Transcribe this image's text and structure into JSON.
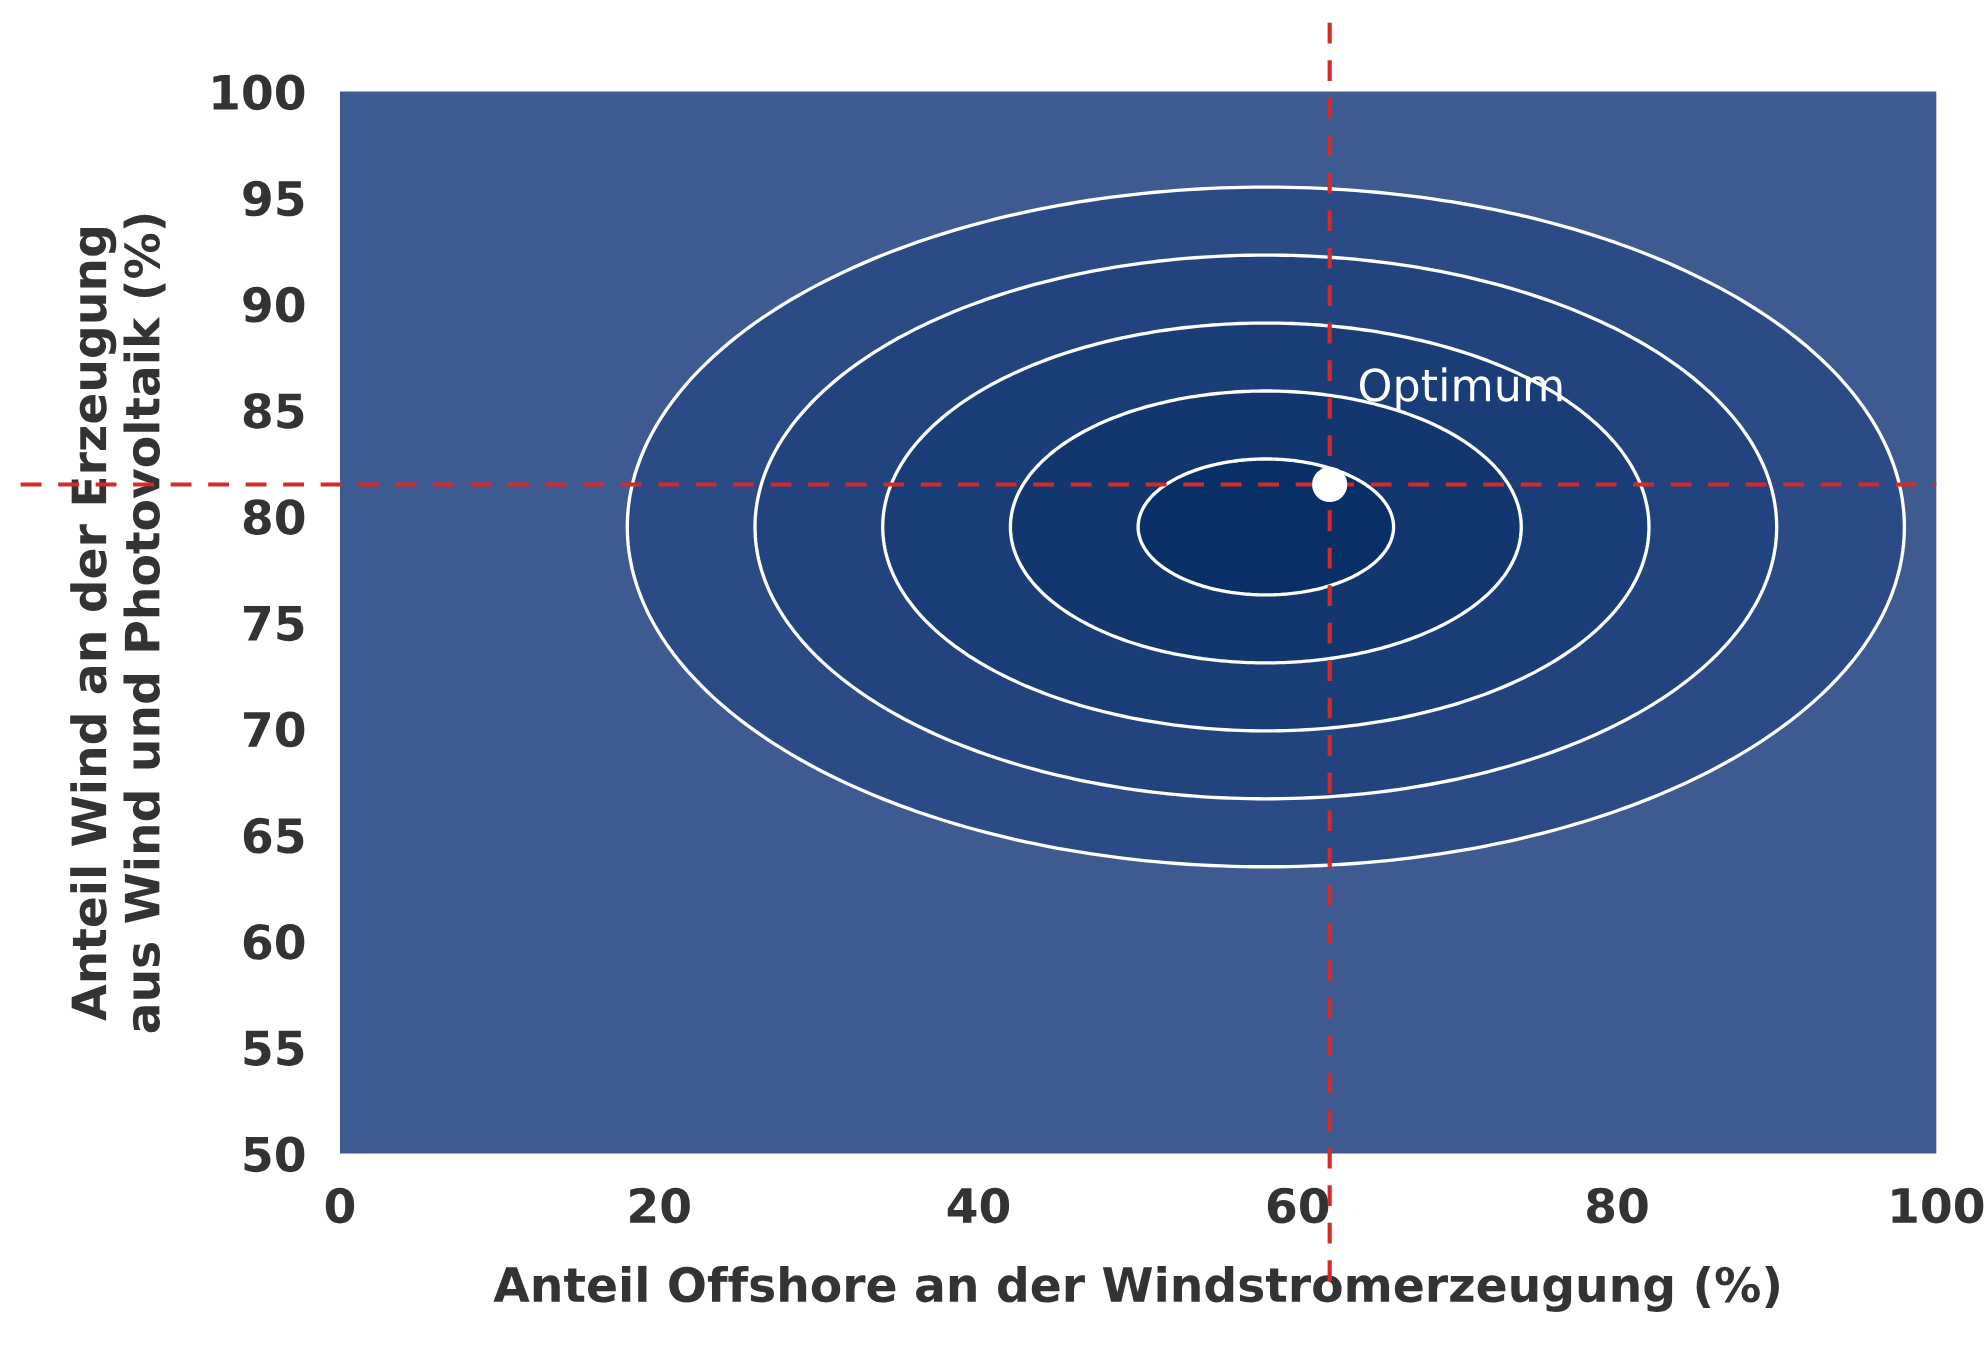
{
  "chart_data": {
    "type": "scatter",
    "xlabel": "Anteil Offshore an der Windstromerzeugung (%)",
    "ylabel": "Anteil Wind an der Erzeugung\naus Wind und Photovoltaik (%)",
    "series": [
      {
        "x": [
          62
        ],
        "values": [
          81.5
        ],
        "color": "#ffffff"
      }
    ],
    "marker": "circle",
    "xlim": [
      0,
      100
    ],
    "xticks": [
      0,
      20,
      40,
      60,
      80,
      100
    ],
    "ylim": [
      50,
      100
    ],
    "yticks": [
      50,
      55,
      60,
      65,
      70,
      75,
      80,
      85,
      90,
      95,
      100
    ],
    "ref_lines": [
      {
        "axis": "x",
        "value": 62,
        "color": "#d42a2a",
        "line_style": "dashed"
      },
      {
        "axis": "y",
        "value": 81.5,
        "color": "#d42a2a",
        "line_style": "dashed"
      }
    ],
    "annotations": [
      {
        "text": "Optimum",
        "x": 62,
        "y": 81.5
      }
    ],
    "grid": false,
    "legend": false
  }
}
